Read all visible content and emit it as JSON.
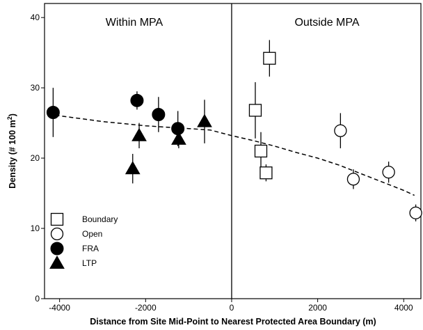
{
  "chart_data": {
    "type": "scatter",
    "xlabel": "Distance from Site Mid-Point to Nearest Protected Area Boundary (m)",
    "ylabel_main": "Density (# 100 m",
    "ylabel_sup": "2",
    "ylabel_close": ")",
    "xlim": [
      -4350,
      4400
    ],
    "ylim": [
      0,
      42
    ],
    "xticks": [
      -4000,
      -2000,
      0,
      2000,
      4000
    ],
    "yticks": [
      0,
      10,
      20,
      30,
      40
    ],
    "boundary_x": 0,
    "regions": {
      "left": "Within MPA",
      "right": "Outside MPA"
    },
    "series": [
      {
        "name": "Boundary",
        "marker": "open-square",
        "points": [
          {
            "x": 550,
            "y": 26.8,
            "err": 4.0
          },
          {
            "x": 680,
            "y": 21.0,
            "err": 2.7
          },
          {
            "x": 880,
            "y": 34.2,
            "err": 2.6
          },
          {
            "x": 800,
            "y": 17.9,
            "err": 1.2
          }
        ]
      },
      {
        "name": "Open",
        "marker": "open-circle",
        "points": [
          {
            "x": 2530,
            "y": 23.9,
            "err": 2.5
          },
          {
            "x": 2830,
            "y": 17.0,
            "err": 1.4
          },
          {
            "x": 3650,
            "y": 18.0,
            "err": 1.5
          },
          {
            "x": 4280,
            "y": 12.2,
            "err": 1.2
          }
        ]
      },
      {
        "name": "FRA",
        "marker": "filled-circle",
        "points": [
          {
            "x": -4150,
            "y": 26.5,
            "err": 3.5
          },
          {
            "x": -2200,
            "y": 28.2,
            "err": 1.3
          },
          {
            "x": -1700,
            "y": 26.2,
            "err": 2.5
          },
          {
            "x": -1250,
            "y": 24.2,
            "err": 2.5
          }
        ]
      },
      {
        "name": "LTP",
        "marker": "filled-triangle",
        "points": [
          {
            "x": -2300,
            "y": 18.5,
            "err": 2.1
          },
          {
            "x": -2150,
            "y": 23.2,
            "err": 1.8
          },
          {
            "x": -1230,
            "y": 22.7,
            "err": 1.3
          },
          {
            "x": -630,
            "y": 25.2,
            "err": 3.1
          }
        ]
      }
    ],
    "trend": [
      [
        -4100,
        26.1
      ],
      [
        -3000,
        25.2
      ],
      [
        -2000,
        24.6
      ],
      [
        -1000,
        24.2
      ],
      [
        -500,
        24.0
      ],
      [
        0,
        23.2
      ],
      [
        500,
        22.5
      ],
      [
        1000,
        21.7
      ],
      [
        1500,
        20.8
      ],
      [
        2000,
        20.0
      ],
      [
        2500,
        19.0
      ],
      [
        3000,
        17.8
      ],
      [
        3500,
        16.6
      ],
      [
        4000,
        15.4
      ],
      [
        4250,
        14.7
      ]
    ],
    "legend": {
      "placement": "bottom-left",
      "entries": [
        {
          "label": "Boundary",
          "marker": "open-square"
        },
        {
          "label": "Open",
          "marker": "open-circle"
        },
        {
          "label": "FRA",
          "marker": "filled-circle"
        },
        {
          "label": "LTP",
          "marker": "filled-triangle"
        }
      ]
    },
    "grid": false
  }
}
